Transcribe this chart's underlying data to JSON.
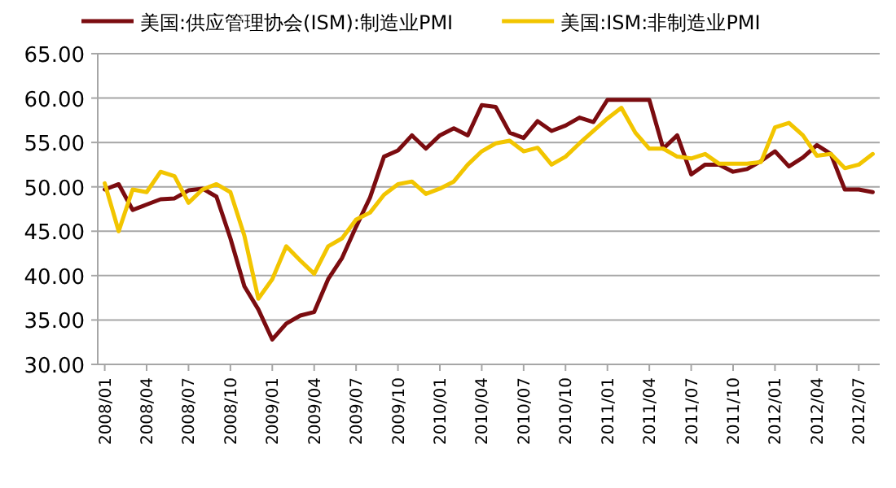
{
  "chart_data": {
    "type": "line",
    "categories": [
      "2008/01",
      null,
      null,
      "2008/04",
      null,
      null,
      "2008/07",
      null,
      null,
      "2008/10",
      null,
      null,
      "2009/01",
      null,
      null,
      "2009/04",
      null,
      null,
      "2009/07",
      null,
      null,
      "2009/10",
      null,
      null,
      "2010/01",
      null,
      null,
      "2010/04",
      null,
      null,
      "2010/07",
      null,
      null,
      "2010/10",
      null,
      null,
      "2011/01",
      null,
      null,
      "2011/04",
      null,
      null,
      "2011/07",
      null,
      null,
      "2011/10",
      null,
      null,
      "2012/01",
      null,
      null,
      "2012/04",
      null,
      null,
      "2012/07",
      null
    ],
    "series": [
      {
        "name": "美国:供应管理协会(ISM):制造业PMI",
        "color": "#7b0c10",
        "values": [
          49.7,
          50.3,
          47.4,
          48.0,
          48.6,
          48.7,
          49.6,
          49.8,
          48.9,
          44.2,
          38.8,
          36.2,
          32.8,
          34.6,
          35.5,
          35.9,
          39.6,
          42.0,
          45.5,
          48.8,
          53.4,
          54.1,
          55.8,
          54.3,
          55.8,
          56.6,
          55.8,
          59.2,
          59.0,
          56.1,
          55.5,
          57.4,
          56.3,
          56.9,
          57.8,
          57.3,
          59.8,
          59.8,
          59.8,
          59.8,
          54.3,
          55.8,
          51.4,
          52.5,
          52.5,
          51.7,
          52.0,
          52.9,
          54.0,
          52.3,
          53.3,
          54.7,
          53.7,
          49.7,
          49.7,
          49.4
        ]
      },
      {
        "name": "美国:ISM:非制造业PMI",
        "color": "#f2c500",
        "values": [
          50.4,
          45.0,
          49.7,
          49.4,
          51.7,
          51.2,
          48.2,
          49.7,
          50.3,
          49.4,
          44.5,
          37.4,
          39.6,
          43.3,
          41.7,
          40.2,
          43.3,
          44.2,
          46.3,
          47.1,
          49.1,
          50.3,
          50.6,
          49.2,
          49.8,
          50.6,
          52.5,
          54.0,
          54.9,
          55.2,
          54.0,
          54.4,
          52.5,
          53.4,
          54.9,
          56.3,
          57.7,
          58.9,
          56.1,
          54.3,
          54.3,
          53.4,
          53.2,
          53.7,
          52.6,
          52.6,
          52.6,
          52.8,
          56.7,
          57.2,
          55.8,
          53.5,
          53.7,
          52.1,
          52.5,
          53.7
        ]
      }
    ],
    "ylim": [
      30,
      65
    ],
    "yticks": [
      {
        "value": 30,
        "label": "30.00"
      },
      {
        "value": 35,
        "label": "35.00"
      },
      {
        "value": 40,
        "label": "40.00"
      },
      {
        "value": 45,
        "label": "45.00"
      },
      {
        "value": 50,
        "label": "50.00"
      },
      {
        "value": 55,
        "label": "55.00"
      },
      {
        "value": 60,
        "label": "60.00"
      },
      {
        "value": 65,
        "label": "65.00"
      }
    ],
    "grid": "y",
    "legend": "top",
    "marker": "none",
    "line_style": "solid"
  }
}
